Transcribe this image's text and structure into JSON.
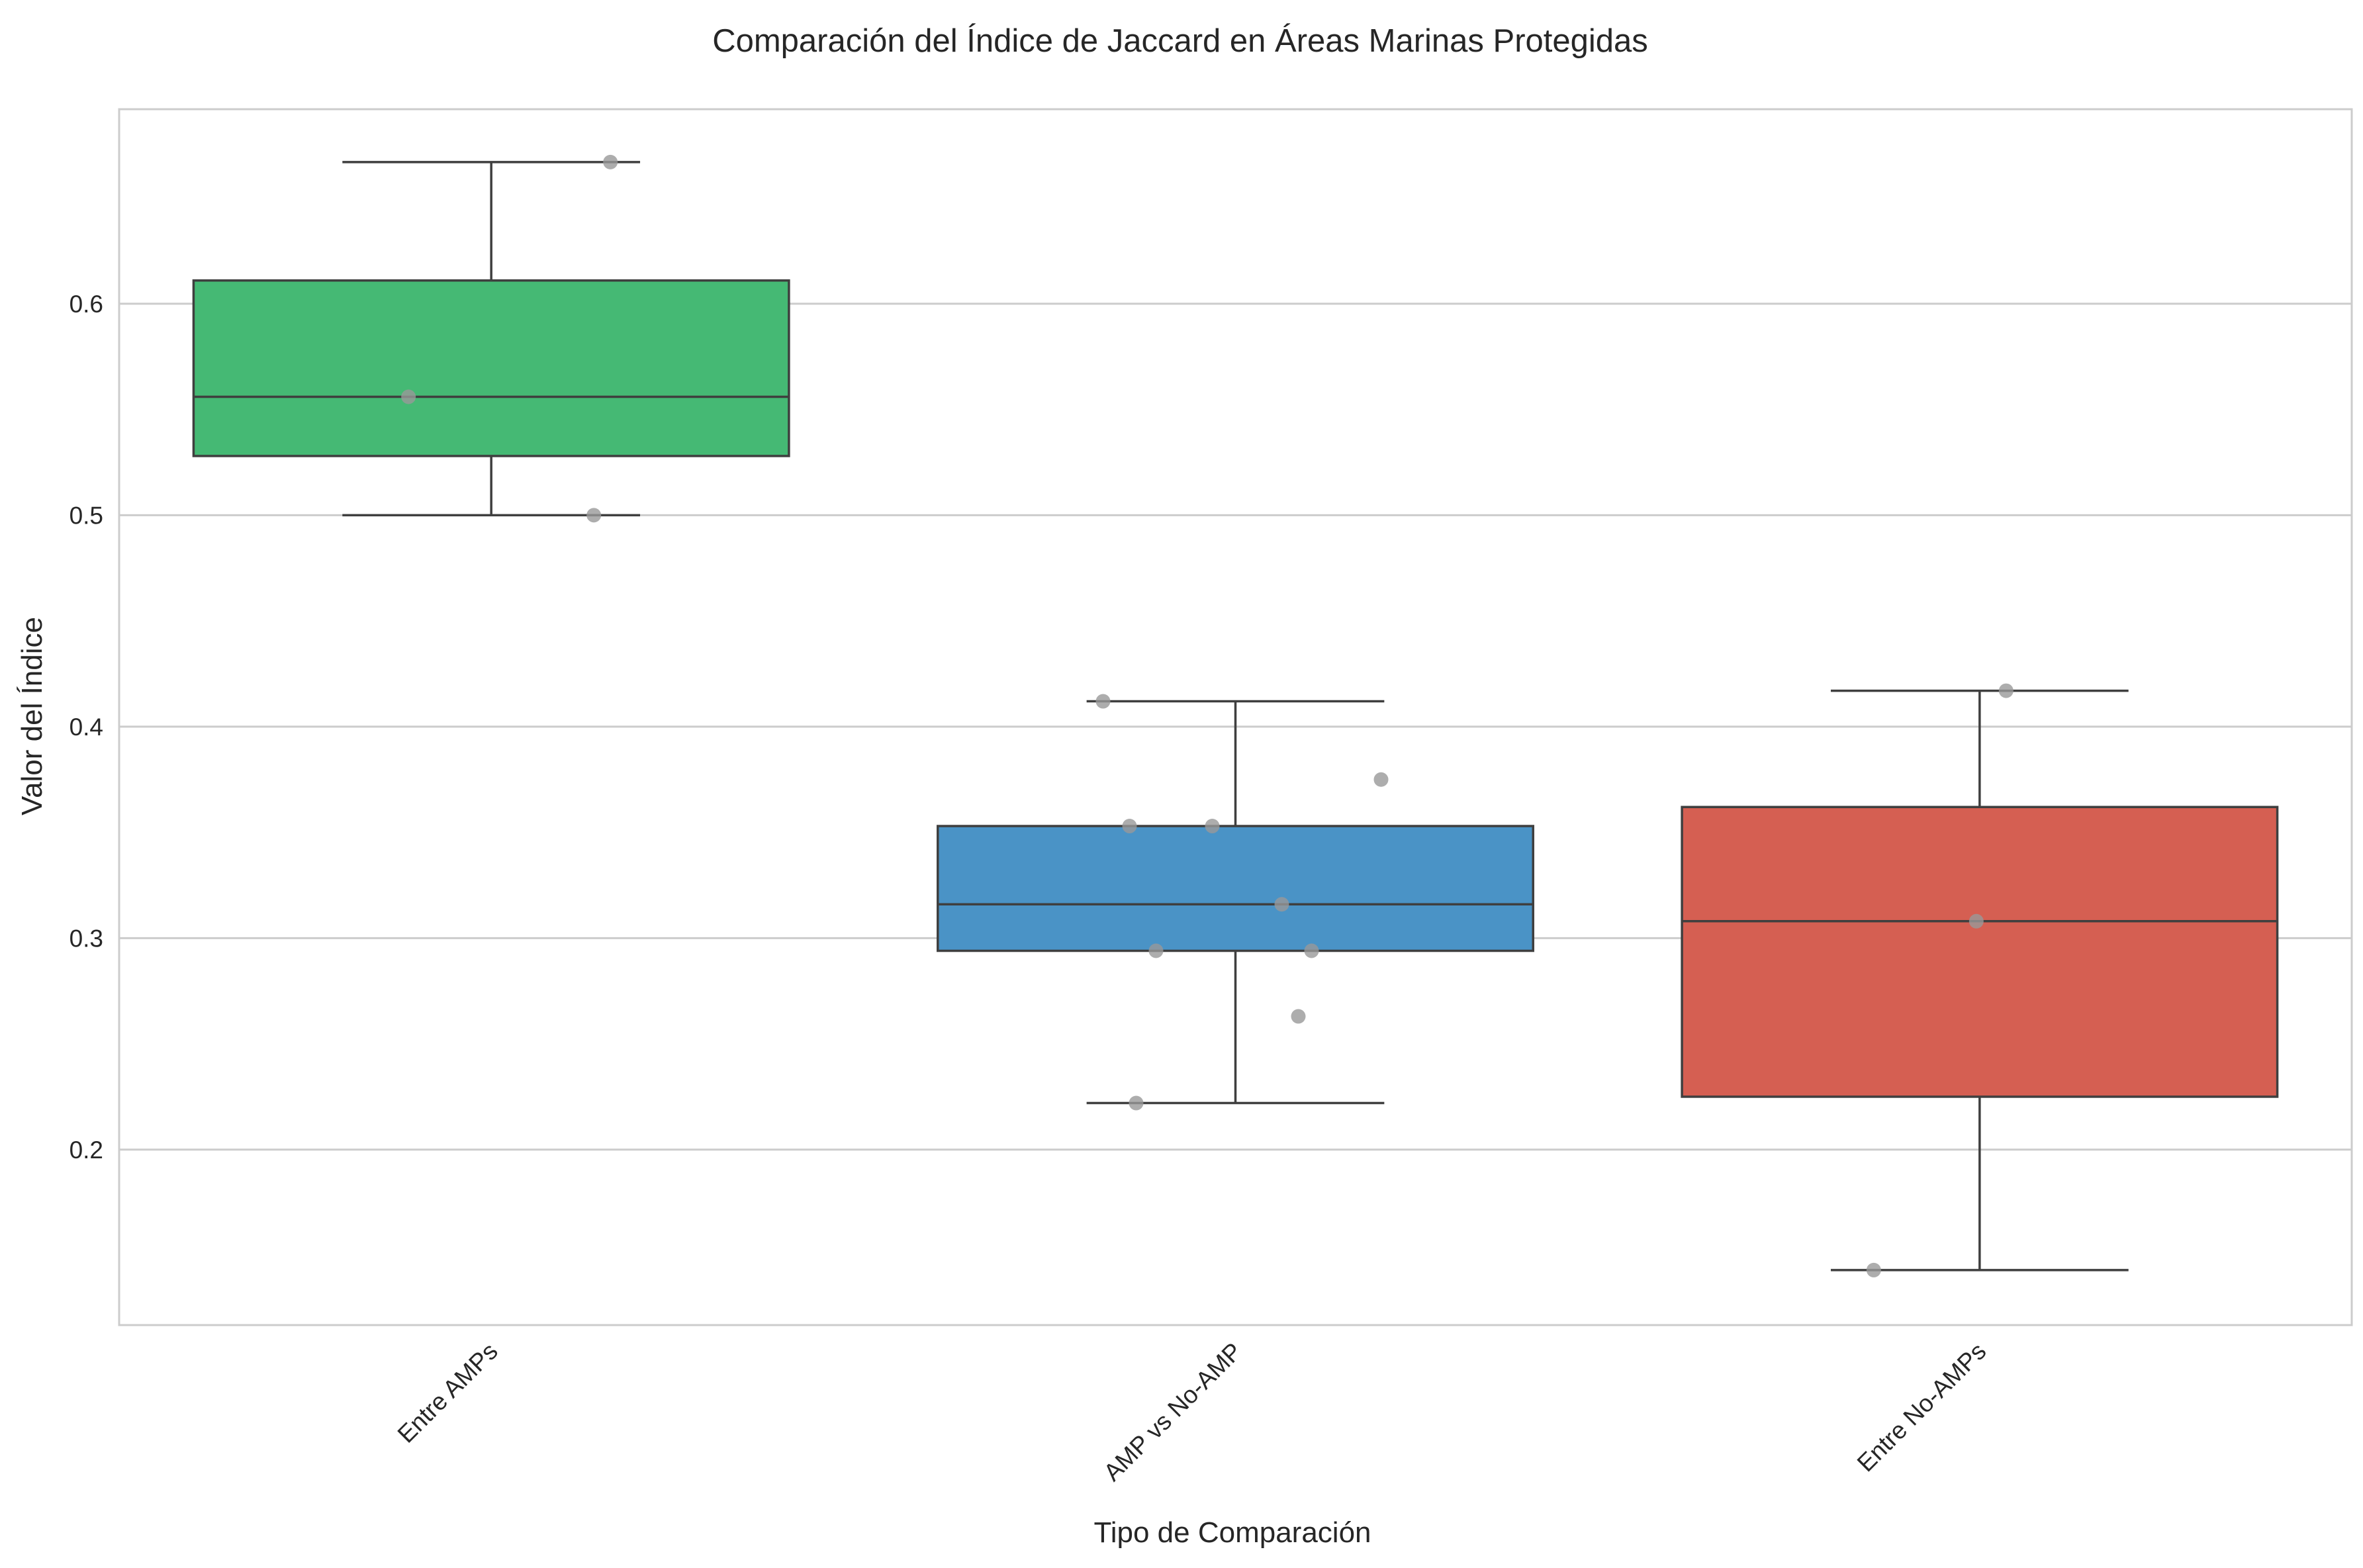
{
  "chart_data": {
    "type": "box",
    "title": "Comparación del Índice de Jaccard en Áreas Marinas Protegidas",
    "xlabel": "Tipo de Comparación",
    "ylabel": "Valor del Índice",
    "ylim": [
      0.117,
      0.692
    ],
    "yticks": [
      0.2,
      0.3,
      0.4,
      0.5,
      0.6
    ],
    "ytick_labels": [
      "0.2",
      "0.3",
      "0.4",
      "0.5",
      "0.6"
    ],
    "grid": "horizontal",
    "x_tick_rotation": 45,
    "categories": [
      "Entre AMPs",
      "AMP vs No-AMP",
      "Entre No-AMPs"
    ],
    "boxes": [
      {
        "category": "Entre AMPs",
        "color": "#45b974",
        "whisker_low": 0.5,
        "q1": 0.528,
        "median": 0.556,
        "q3": 0.611,
        "whisker_high": 0.667,
        "points": [
          0.667,
          0.556,
          0.5
        ]
      },
      {
        "category": "AMP vs No-AMP",
        "color": "#4a93c6",
        "whisker_low": 0.222,
        "q1": 0.294,
        "median": 0.316,
        "q3": 0.353,
        "whisker_high": 0.412,
        "points": [
          0.412,
          0.375,
          0.353,
          0.353,
          0.316,
          0.294,
          0.294,
          0.263,
          0.222
        ]
      },
      {
        "category": "Entre No-AMPs",
        "color": "#d55f52",
        "whisker_low": 0.143,
        "q1": 0.225,
        "median": 0.308,
        "q3": 0.362,
        "whisker_high": 0.417,
        "points": [
          0.417,
          0.308,
          0.143
        ]
      }
    ],
    "point_color": "#999999",
    "line_color": "#3f3f3f",
    "grid_color": "#cccccc",
    "spine_color": "#cccccc"
  }
}
